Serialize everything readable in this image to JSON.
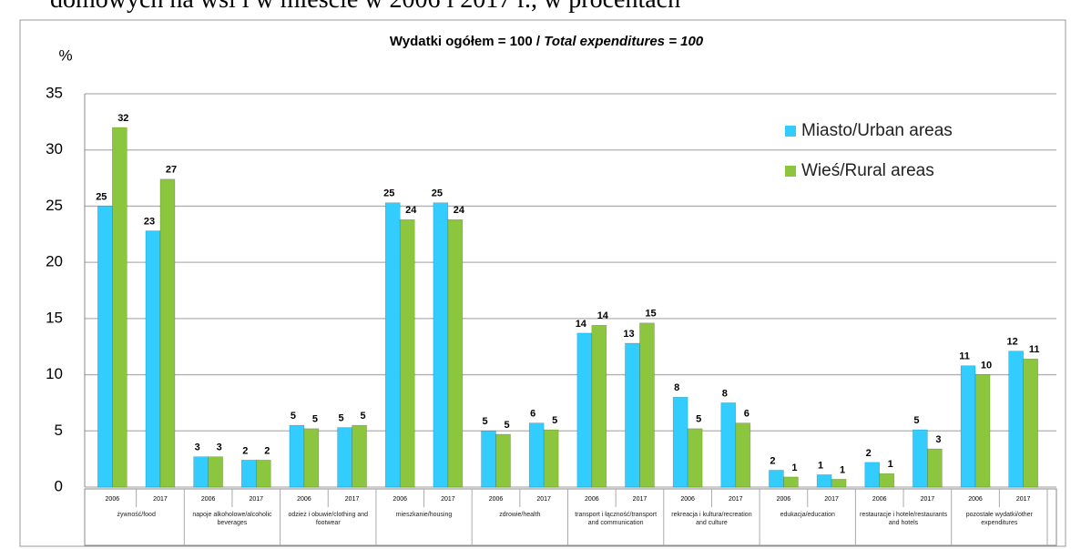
{
  "heading": "domowych na wsi i w mieście w 2006 i 2017 r., w procentach",
  "chart_data": {
    "type": "bar",
    "title": "Wydatki ogółem = 100 / ",
    "title_italic": "Total expenditures = 100",
    "y_label": "%",
    "ylim": [
      0,
      35
    ],
    "yticks": [
      0,
      5,
      10,
      15,
      20,
      25,
      30,
      35
    ],
    "grid": true,
    "legend": "upper right",
    "categories": [
      "2006",
      "2017",
      "2006",
      "2017",
      "2006",
      "2017",
      "2006",
      "2017",
      "2006",
      "2017",
      "2006",
      "2017",
      "2006",
      "2017",
      "2006",
      "2017",
      "2006",
      "2017",
      "2006",
      "2017"
    ],
    "groups": [
      "żywność/food",
      "napoje alkoholowe/alcoholic beverages",
      "odzież i obuwie/clothing and footwear",
      "mieszkanie/housing",
      "zdrowie/health",
      "transport i łączność/transport and communication",
      "rekreacja i kultura/recreation and culture",
      "edukacja/education",
      "restauracje i hotele/restaurants and hotels",
      "pozostałe wydatki/other expenditures"
    ],
    "series": [
      {
        "name": "Miasto/Urban areas",
        "color": "#33ccff",
        "values": [
          25,
          22.8,
          2.7,
          2.4,
          5.5,
          5.3,
          25.3,
          25.3,
          5.0,
          5.7,
          13.7,
          12.8,
          8.0,
          7.5,
          1.5,
          1.1,
          2.2,
          5.1,
          10.8,
          12.1
        ],
        "value_labels": [
          "25",
          "23",
          "3",
          "2",
          "5",
          "5",
          "25",
          "25",
          "5",
          "6",
          "14",
          "13",
          "8",
          "8",
          "2",
          "1",
          "2",
          "5",
          "11",
          "12"
        ]
      },
      {
        "name": "Wieś/Rural areas",
        "color": "#8cc63f",
        "values": [
          32,
          27.4,
          2.7,
          2.4,
          5.2,
          5.5,
          23.8,
          23.8,
          4.7,
          5.1,
          14.4,
          14.6,
          5.2,
          5.7,
          0.9,
          0.7,
          1.2,
          3.4,
          10.0,
          11.4
        ],
        "value_labels": [
          "32",
          "27",
          "3",
          "2",
          "5",
          "5",
          "24",
          "24",
          "5",
          "5",
          "14",
          "15",
          "5",
          "6",
          "1",
          "1",
          "1",
          "3",
          "10",
          "11"
        ]
      }
    ]
  }
}
